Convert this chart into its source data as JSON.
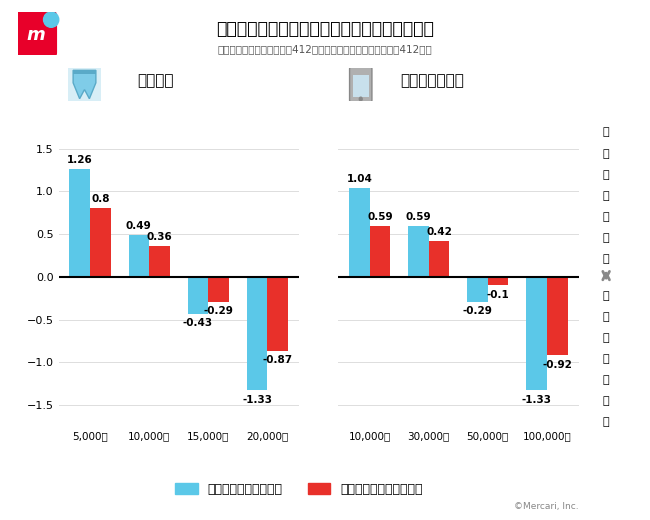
{
  "title": "新品購入時、販売価格が購買意思に与える影響",
  "subtitle": "（フリマアプリ非利用者＝412人、フリマアプリ出品経験者＝412人）",
  "jeans_label": "ジーンズ",
  "tablet_label": "タブレット端末",
  "jeans_categories": [
    "5,000円",
    "10,000円",
    "15,000円",
    "20,000円"
  ],
  "tablet_categories": [
    "10,000円",
    "30,000円",
    "50,000円",
    "100,000円"
  ],
  "jeans_non_user": [
    1.26,
    0.49,
    -0.43,
    -1.33
  ],
  "jeans_experienced": [
    0.8,
    0.36,
    -0.29,
    -0.87
  ],
  "tablet_non_user": [
    1.04,
    0.59,
    -0.29,
    -1.33
  ],
  "tablet_experienced": [
    0.59,
    0.42,
    -0.1,
    -0.92
  ],
  "color_non_user": "#5BC8E8",
  "color_experienced": "#E8302A",
  "legend_non_user": "フリマアプリ非利用者",
  "legend_experienced": "フリマアプリ出品経験者",
  "ylim": [
    -1.75,
    1.9
  ],
  "yticks": [
    -1.5,
    -1.0,
    -0.5,
    0.0,
    0.5,
    1.0,
    1.5
  ],
  "bg_color": "#FFFFFF",
  "right_label_top": "購入されやすい",
  "right_label_bottom": "購入されにくい",
  "copyright": "©Mercari, Inc.",
  "bar_width": 0.35,
  "right_bg": "#E8E8E8",
  "border_red": "#CC0000",
  "label_fontsize": 7.5,
  "value_fontsize": 7.5,
  "title_fontsize": 12.5,
  "subtitle_fontsize": 7.5,
  "section_fontsize": 11,
  "legend_fontsize": 9
}
